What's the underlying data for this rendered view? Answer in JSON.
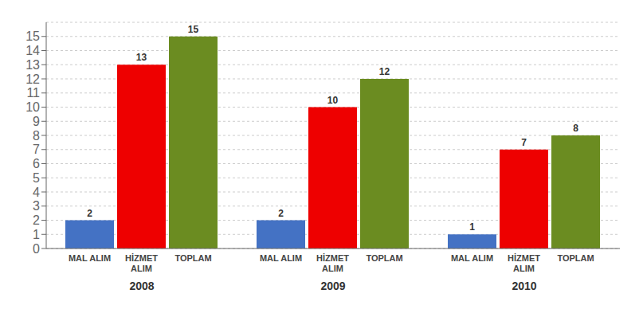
{
  "chart_data": {
    "type": "bar",
    "categories": [
      "2008",
      "2009",
      "2010"
    ],
    "series": [
      {
        "name": "MAL ALIM",
        "color": "#4472C4",
        "values": [
          2,
          2,
          1
        ]
      },
      {
        "name": "HİZMET\nALIM",
        "color": "#EE0000",
        "values": [
          13,
          10,
          7
        ]
      },
      {
        "name": "TOPLAM",
        "color": "#6B8C21",
        "values": [
          15,
          12,
          8
        ]
      }
    ],
    "ylim": [
      0,
      16
    ],
    "yticks": [
      0,
      1,
      2,
      3,
      4,
      5,
      6,
      7,
      8,
      9,
      10,
      11,
      12,
      13,
      14,
      15
    ],
    "grid": true,
    "data_labels": true
  }
}
